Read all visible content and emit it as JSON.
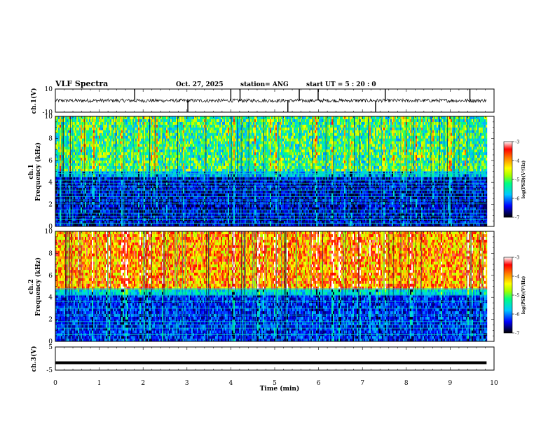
{
  "header": {
    "title": "VLF Spectra",
    "date": "Oct. 27, 2025",
    "station": "station= ANG",
    "start_ut": "start UT =  5 : 20 : 0"
  },
  "chart_data": {
    "type": "heatmap",
    "x_unit_label": "Time (min)",
    "xlim": [
      0,
      10
    ],
    "x_ticks": [
      "0",
      "1",
      "2",
      "3",
      "4",
      "5",
      "6",
      "7",
      "8",
      "9",
      "10"
    ],
    "data_end_min": 9.83,
    "panels": [
      {
        "id": "ch1-waveform",
        "type": "line",
        "ylabel": "ch.1(V)",
        "ylim": [
          -10,
          10
        ],
        "y_ticks": [
          "10",
          "-10"
        ],
        "baseline_v": 0,
        "noise_amplitude_v": 1.5,
        "spikes_min": [
          1.81,
          3.02,
          4.0,
          4.21,
          5.3,
          5.56,
          5.99,
          7.3,
          7.52,
          9.45
        ]
      },
      {
        "id": "ch1-spectrogram",
        "type": "heatmap",
        "ylabel_line1": "ch.1",
        "ylabel_line2": "Frequency (kHz)",
        "ylim": [
          0,
          10
        ],
        "y_ticks": [
          "0",
          "2",
          "4",
          "6",
          "8",
          "10"
        ],
        "color_range_log": [
          -7,
          -3
        ],
        "colorbar_ticks": [
          "-3",
          "-4",
          "-5",
          "-6",
          "-7"
        ],
        "colorbar_label": "log(PSD)(V²/Hz)",
        "cutoff_khz": 5.0,
        "upper_band_level_log": -5.2,
        "lower_band_level_log": -6.5,
        "harmonic_lines_khz": [
          0.3,
          0.6,
          0.9,
          1.2,
          1.5,
          2.1,
          2.4,
          2.7,
          3.0,
          3.3,
          3.6,
          3.9,
          4.2,
          4.5,
          4.8
        ]
      },
      {
        "id": "ch2-spectrogram",
        "type": "heatmap",
        "ylabel_line1": "ch.2",
        "ylabel_line2": "Frequency (kHz)",
        "ylim": [
          0,
          10
        ],
        "y_ticks": [
          "0",
          "2",
          "4",
          "6",
          "8",
          "10"
        ],
        "color_range_log": [
          -7,
          -3
        ],
        "colorbar_ticks": [
          "-3",
          "-4",
          "-5",
          "-6",
          "-7"
        ],
        "colorbar_label": "log(PSD)(V²/Hz)",
        "cutoff_khz": 4.8,
        "upper_band_level_log": -4.0,
        "lower_band_level_log": -6.3,
        "harmonic_lines_khz": [
          0.6,
          1.2,
          1.5,
          1.8,
          2.4,
          3.0,
          3.6,
          4.2
        ]
      },
      {
        "id": "ch3-waveform",
        "type": "line",
        "ylabel": "ch.3(V)",
        "ylim": [
          -5,
          5
        ],
        "y_ticks": [
          "5",
          "-5"
        ],
        "baseline_v": -1.8
      }
    ]
  }
}
